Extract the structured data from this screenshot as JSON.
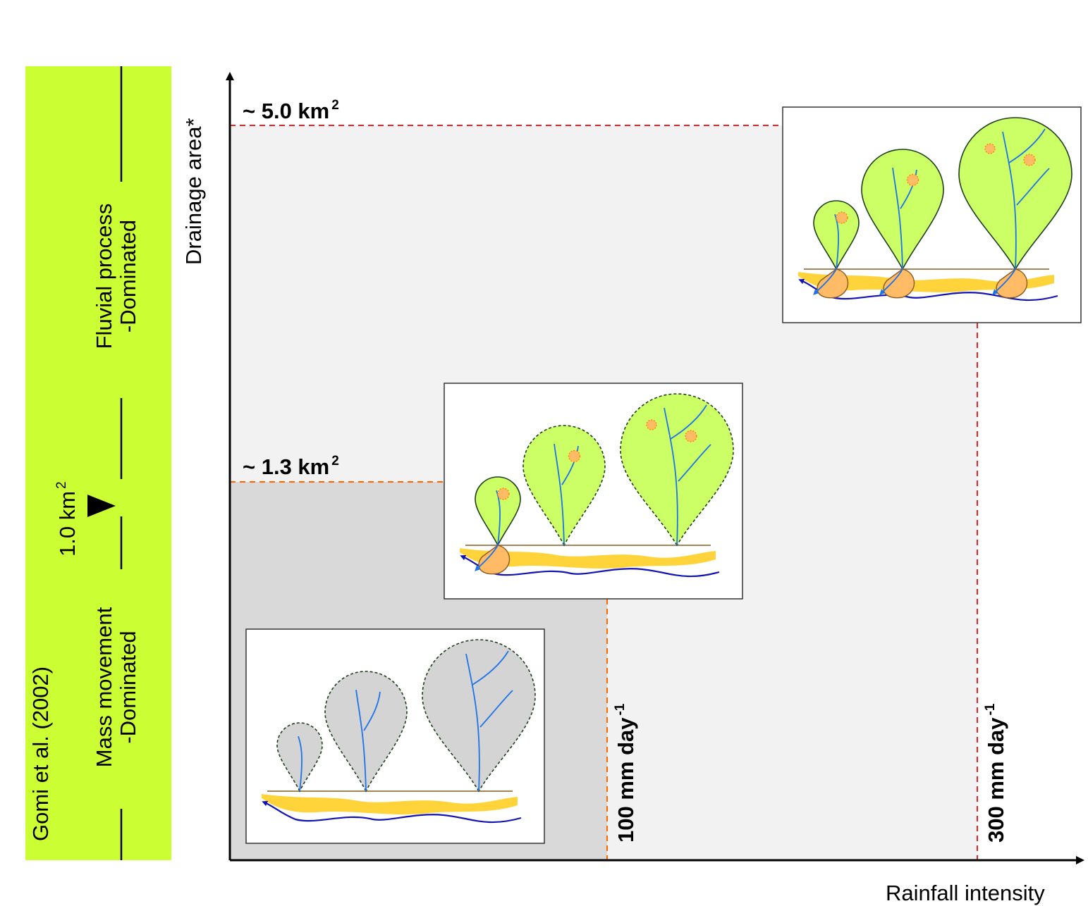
{
  "side_panel": {
    "color": "#ccff33",
    "citation": "Gomi et al. (2002)",
    "fluvial_label_line1": "Fluvial process",
    "fluvial_label_line2": "-Dominated",
    "threshold_value": "1.0 km",
    "threshold_exp": "2",
    "mass_label_line1": "Mass movement",
    "mass_label_line2": "-Dominated"
  },
  "axes": {
    "y_label": "Drainage area*",
    "x_label": "Rainfall intensity"
  },
  "thresholds": {
    "area_high": "~ 5.0 km",
    "area_high_exp": "2",
    "area_mid": "~ 1.3 km",
    "area_mid_exp": "2",
    "rain_low": "100 mm day",
    "rain_low_exp": "-1",
    "rain_high": "300 mm day",
    "rain_high_exp": "-1"
  },
  "colors": {
    "region_low": "#d9d9d9",
    "region_high": "#f2f2f2",
    "red_dash": "#ee2222",
    "orange_dash": "#ff6600",
    "catchment_active": "#ccff66",
    "catchment_inactive": "#d4d4d4",
    "channel": "#1e73e8",
    "river": "#1414b4",
    "deposit": "#ffd43b",
    "landslide": "#ffbb66"
  }
}
